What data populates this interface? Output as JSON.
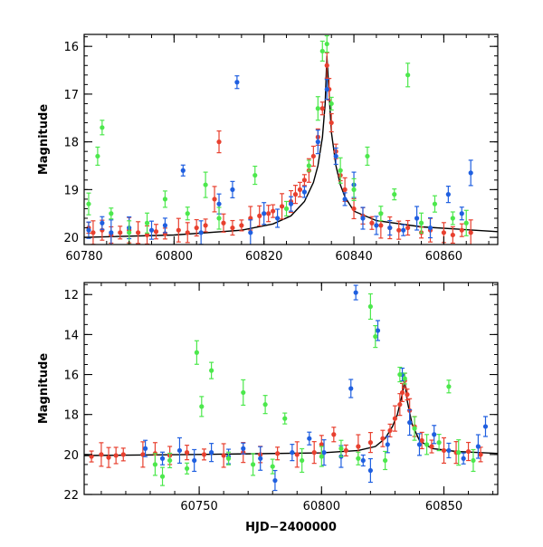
{
  "chart_data": [
    {
      "type": "scatter",
      "title": "",
      "xlabel": "",
      "ylabel": "Magnitude",
      "xlim": [
        60780,
        60872
      ],
      "ylim": [
        20.15,
        15.75
      ],
      "y_inverted": true,
      "grid": false,
      "x_ticks": [
        "60780",
        "60800",
        "60820",
        "60840",
        "60860"
      ],
      "y_ticks": [
        "16",
        "17",
        "18",
        "19",
        "20"
      ],
      "model_curve": {
        "color": "#000000",
        "x": [
          60780,
          60800,
          60815,
          60822,
          60826,
          60829,
          60831,
          60832,
          60833,
          60833.6,
          60834,
          60834.5,
          60835,
          60836,
          60837,
          60838,
          60840,
          60845,
          60855,
          60872
        ],
        "y": [
          20.0,
          19.95,
          19.85,
          19.72,
          19.55,
          19.25,
          18.85,
          18.5,
          17.9,
          17.2,
          16.2,
          17.0,
          17.8,
          18.5,
          18.9,
          19.15,
          19.45,
          19.65,
          19.78,
          19.88
        ]
      },
      "series": [
        {
          "color": "#e8402f",
          "x": [
            60781,
            60782,
            60784,
            60786,
            60788,
            60790,
            60792,
            60794,
            60796,
            60798,
            60801,
            60803,
            60805,
            60807,
            60809,
            60810,
            60811,
            60813,
            60815,
            60817,
            60819,
            60821,
            60822,
            60824,
            60826,
            60827,
            60828,
            60829,
            60830,
            60831,
            60832,
            60833,
            60834,
            60834.5,
            60835,
            60836,
            60837,
            60838,
            60840,
            60842,
            60844,
            60846,
            60848,
            60850,
            60852,
            60855,
            60857,
            60860,
            60862,
            60864,
            60866
          ],
          "y": [
            19.8,
            19.9,
            19.85,
            19.95,
            19.9,
            19.85,
            19.9,
            19.95,
            19.88,
            19.92,
            19.85,
            19.9,
            19.8,
            19.75,
            19.2,
            18.0,
            19.7,
            19.8,
            19.75,
            19.6,
            19.55,
            19.5,
            19.45,
            19.35,
            19.25,
            19.1,
            19.0,
            18.8,
            18.6,
            18.3,
            17.9,
            17.3,
            16.4,
            16.9,
            17.6,
            18.2,
            18.7,
            19.0,
            19.4,
            19.55,
            19.7,
            19.75,
            19.8,
            19.85,
            19.8,
            19.9,
            19.85,
            19.9,
            19.95,
            19.85,
            19.9
          ]
        },
        {
          "color": "#1f5fe0",
          "x": [
            60781,
            60784,
            60786,
            60790,
            60795,
            60798,
            60802,
            60806,
            60810,
            60813,
            60814,
            60817,
            60820,
            60823,
            60826,
            60829,
            60832,
            60834,
            60836,
            60838,
            60840,
            60842,
            60845,
            60848,
            60851,
            60854,
            60857,
            60861,
            60864,
            60866
          ],
          "y": [
            19.85,
            19.7,
            19.9,
            19.8,
            19.85,
            19.75,
            18.6,
            19.9,
            19.3,
            19.0,
            16.75,
            19.9,
            19.5,
            19.6,
            19.3,
            19.05,
            18.0,
            16.9,
            18.3,
            19.2,
            18.9,
            19.6,
            19.75,
            19.8,
            19.85,
            19.6,
            19.8,
            19.1,
            19.5,
            18.65
          ]
        },
        {
          "color": "#4ce84c",
          "x": [
            60781,
            60783,
            60784,
            60786,
            60790,
            60794,
            60798,
            60803,
            60807,
            60810,
            60818,
            60825,
            60830,
            60832,
            60833,
            60834,
            60835,
            60837,
            60840,
            60843,
            60846,
            60849,
            60852,
            60855,
            60858,
            60862,
            60865
          ],
          "y": [
            19.3,
            18.3,
            17.7,
            19.5,
            19.9,
            19.7,
            19.2,
            19.5,
            18.9,
            19.6,
            18.7,
            19.4,
            18.5,
            17.3,
            16.1,
            15.95,
            17.2,
            18.6,
            19.0,
            18.3,
            19.5,
            19.1,
            16.6,
            19.7,
            19.3,
            19.6,
            19.7
          ]
        }
      ]
    },
    {
      "type": "scatter",
      "title": "",
      "xlabel": "HJD−2400000",
      "ylabel": "Magnitude",
      "xlim": [
        60703,
        60872
      ],
      "ylim": [
        22,
        11.4
      ],
      "y_inverted": true,
      "grid": false,
      "x_ticks": [
        "60750",
        "60800",
        "60850"
      ],
      "y_ticks": [
        "12",
        "14",
        "16",
        "18",
        "20",
        "22"
      ],
      "model_curve": {
        "color": "#000000",
        "x": [
          60703,
          60750,
          60800,
          60815,
          60822,
          60826,
          60829,
          60831,
          60833,
          60834,
          60835,
          60837,
          60840,
          60845,
          60855,
          60872
        ],
        "y": [
          20.05,
          20.0,
          19.92,
          19.8,
          19.6,
          19.2,
          18.6,
          18.0,
          17.0,
          16.3,
          17.3,
          18.5,
          19.3,
          19.7,
          19.85,
          19.95
        ]
      },
      "series": [
        {
          "color": "#e8402f",
          "x": [
            60706,
            60710,
            60713,
            60716,
            60719,
            60727,
            60732,
            60738,
            60745,
            60752,
            60760,
            60768,
            60775,
            60782,
            60790,
            60797,
            60800,
            60805,
            60810,
            60815,
            60820,
            60825,
            60828,
            60830,
            60832,
            60833,
            60834,
            60835,
            60836,
            60838,
            60841,
            60845,
            60850,
            60855,
            60860,
            60865
          ],
          "y": [
            20.1,
            20.0,
            20.15,
            20.05,
            20.0,
            20.0,
            19.95,
            20.05,
            19.9,
            20.0,
            20.05,
            19.9,
            20.0,
            19.95,
            20.0,
            19.9,
            19.5,
            19.0,
            19.8,
            19.6,
            19.4,
            19.2,
            18.8,
            18.2,
            17.5,
            16.9,
            16.3,
            17.0,
            17.8,
            18.6,
            19.3,
            19.6,
            19.8,
            19.9,
            19.85,
            20.0
          ]
        },
        {
          "color": "#1f5fe0",
          "x": [
            60728,
            60735,
            60742,
            60748,
            60755,
            60762,
            60768,
            60775,
            60781,
            60788,
            60795,
            60801,
            60808,
            60812,
            60814,
            60817,
            60820,
            60823,
            60827,
            60833,
            60836,
            60840,
            60846,
            60852,
            60858,
            60864,
            60867
          ],
          "y": [
            19.7,
            20.2,
            19.8,
            20.3,
            19.9,
            20.1,
            19.7,
            20.2,
            21.3,
            19.9,
            19.2,
            19.9,
            20.1,
            16.7,
            11.9,
            20.3,
            20.8,
            13.8,
            19.5,
            16.0,
            18.4,
            19.5,
            19.0,
            19.8,
            20.2,
            19.6,
            18.6
          ]
        },
        {
          "color": "#4ce84c",
          "x": [
            60732,
            60735,
            60738,
            60745,
            60749,
            60751,
            60755,
            60762,
            60768,
            60772,
            60777,
            60780,
            60785,
            60792,
            60800,
            60808,
            60815,
            60820,
            60822,
            60826,
            60832,
            60834,
            60838,
            60843,
            60848,
            60852,
            60856,
            60862
          ],
          "y": [
            20.5,
            21.1,
            20.3,
            20.7,
            14.9,
            17.6,
            15.8,
            20.2,
            16.9,
            20.5,
            17.5,
            20.6,
            18.2,
            20.3,
            20.1,
            19.7,
            20.2,
            12.6,
            14.1,
            20.3,
            16.0,
            16.2,
            18.7,
            19.5,
            19.4,
            16.6,
            19.9,
            20.3
          ]
        }
      ]
    }
  ]
}
